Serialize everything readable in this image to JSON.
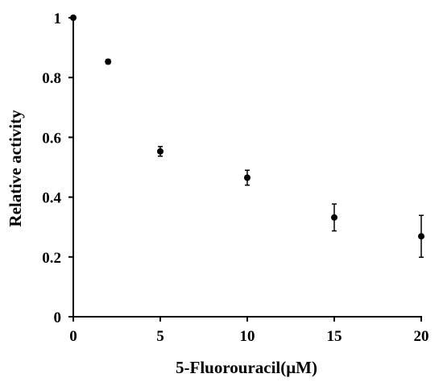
{
  "chart_data": {
    "type": "scatter",
    "xlabel": "5-Fluorouracil(μM)",
    "ylabel": "Relative activity",
    "xlim": [
      0,
      20
    ],
    "ylim": [
      0,
      1
    ],
    "x_ticks": [
      0,
      5,
      10,
      15,
      20
    ],
    "y_ticks": [
      0,
      0.2,
      0.4,
      0.6,
      0.8,
      1
    ],
    "x_tick_labels": [
      "0",
      "5",
      "10",
      "15",
      "20"
    ],
    "y_tick_labels": [
      "0",
      "0.2",
      "0.4",
      "0.6",
      "0.8",
      "1"
    ],
    "grid": false,
    "legend": "none",
    "series": [
      {
        "points": [
          {
            "x": 0,
            "y": 1.0,
            "err": 0.0
          },
          {
            "x": 2,
            "y": 0.853,
            "err": 0.007
          },
          {
            "x": 5,
            "y": 0.553,
            "err": 0.016
          },
          {
            "x": 10,
            "y": 0.465,
            "err": 0.025
          },
          {
            "x": 15,
            "y": 0.332,
            "err": 0.045
          },
          {
            "x": 20,
            "y": 0.269,
            "err": 0.07
          }
        ]
      }
    ]
  }
}
